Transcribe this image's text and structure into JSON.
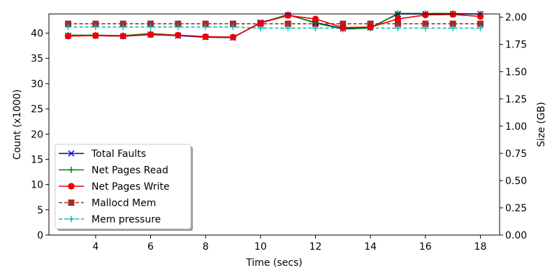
{
  "chart_data": {
    "type": "line",
    "x": [
      3,
      4,
      5,
      6,
      7,
      8,
      9,
      10,
      11,
      12,
      13,
      14,
      15,
      16,
      17,
      18
    ],
    "xlabel": "Time (secs)",
    "ylabel": "Count (x1000)",
    "ylabel_right": "Size (GB)",
    "xlim": [
      2.3,
      18.7
    ],
    "ylim": [
      0,
      43.8
    ],
    "ylim_right": [
      0,
      2.03
    ],
    "x_ticks": [
      "4",
      "6",
      "8",
      "10",
      "12",
      "14",
      "16",
      "18"
    ],
    "y_ticks": [
      "0",
      "5",
      "10",
      "15",
      "20",
      "25",
      "30",
      "35",
      "40"
    ],
    "y_ticks_right": [
      "0.00",
      "0.25",
      "0.50",
      "0.75",
      "1.00",
      "1.25",
      "1.50",
      "1.75",
      "2.00"
    ],
    "grid": false,
    "legend_position": "lower-left",
    "series": [
      {
        "name": "Total Faults",
        "axis": "left",
        "color": "#0000cc",
        "linestyle": "solid",
        "marker": "x",
        "values": [
          39.5,
          39.5,
          39.4,
          39.7,
          39.5,
          39.2,
          39.1,
          42.1,
          43.6,
          42.1,
          40.9,
          41.1,
          43.8,
          43.8,
          43.8,
          43.8
        ]
      },
      {
        "name": "Net Pages Read",
        "axis": "left",
        "color": "#008000",
        "linestyle": "solid",
        "marker": "plus",
        "values": [
          39.6,
          39.6,
          39.5,
          39.9,
          39.6,
          39.3,
          39.2,
          42.0,
          43.7,
          42.0,
          40.8,
          41.0,
          43.9,
          43.9,
          43.9,
          43.8
        ]
      },
      {
        "name": "Net Pages Write",
        "axis": "left",
        "color": "#ee0000",
        "linestyle": "solid",
        "marker": "circle",
        "values": [
          39.4,
          39.5,
          39.4,
          39.7,
          39.6,
          39.3,
          39.2,
          42.0,
          43.5,
          42.8,
          41.1,
          41.2,
          42.8,
          43.6,
          43.7,
          43.3
        ]
      },
      {
        "name": "Mallocd Mem",
        "axis": "right",
        "color": "#a52a2a",
        "linestyle": "dashed",
        "marker": "square",
        "values": [
          1.94,
          1.94,
          1.94,
          1.94,
          1.94,
          1.94,
          1.94,
          1.94,
          1.94,
          1.94,
          1.94,
          1.94,
          1.94,
          1.94,
          1.94,
          1.94
        ]
      },
      {
        "name": "Mem pressure",
        "axis": "right",
        "color": "#00bfbf",
        "linestyle": "dashed",
        "marker": "plus",
        "values": [
          1.91,
          1.91,
          1.91,
          1.91,
          1.91,
          1.91,
          1.91,
          1.9,
          1.9,
          1.9,
          1.9,
          1.9,
          1.9,
          1.9,
          1.9,
          1.9
        ]
      }
    ]
  }
}
